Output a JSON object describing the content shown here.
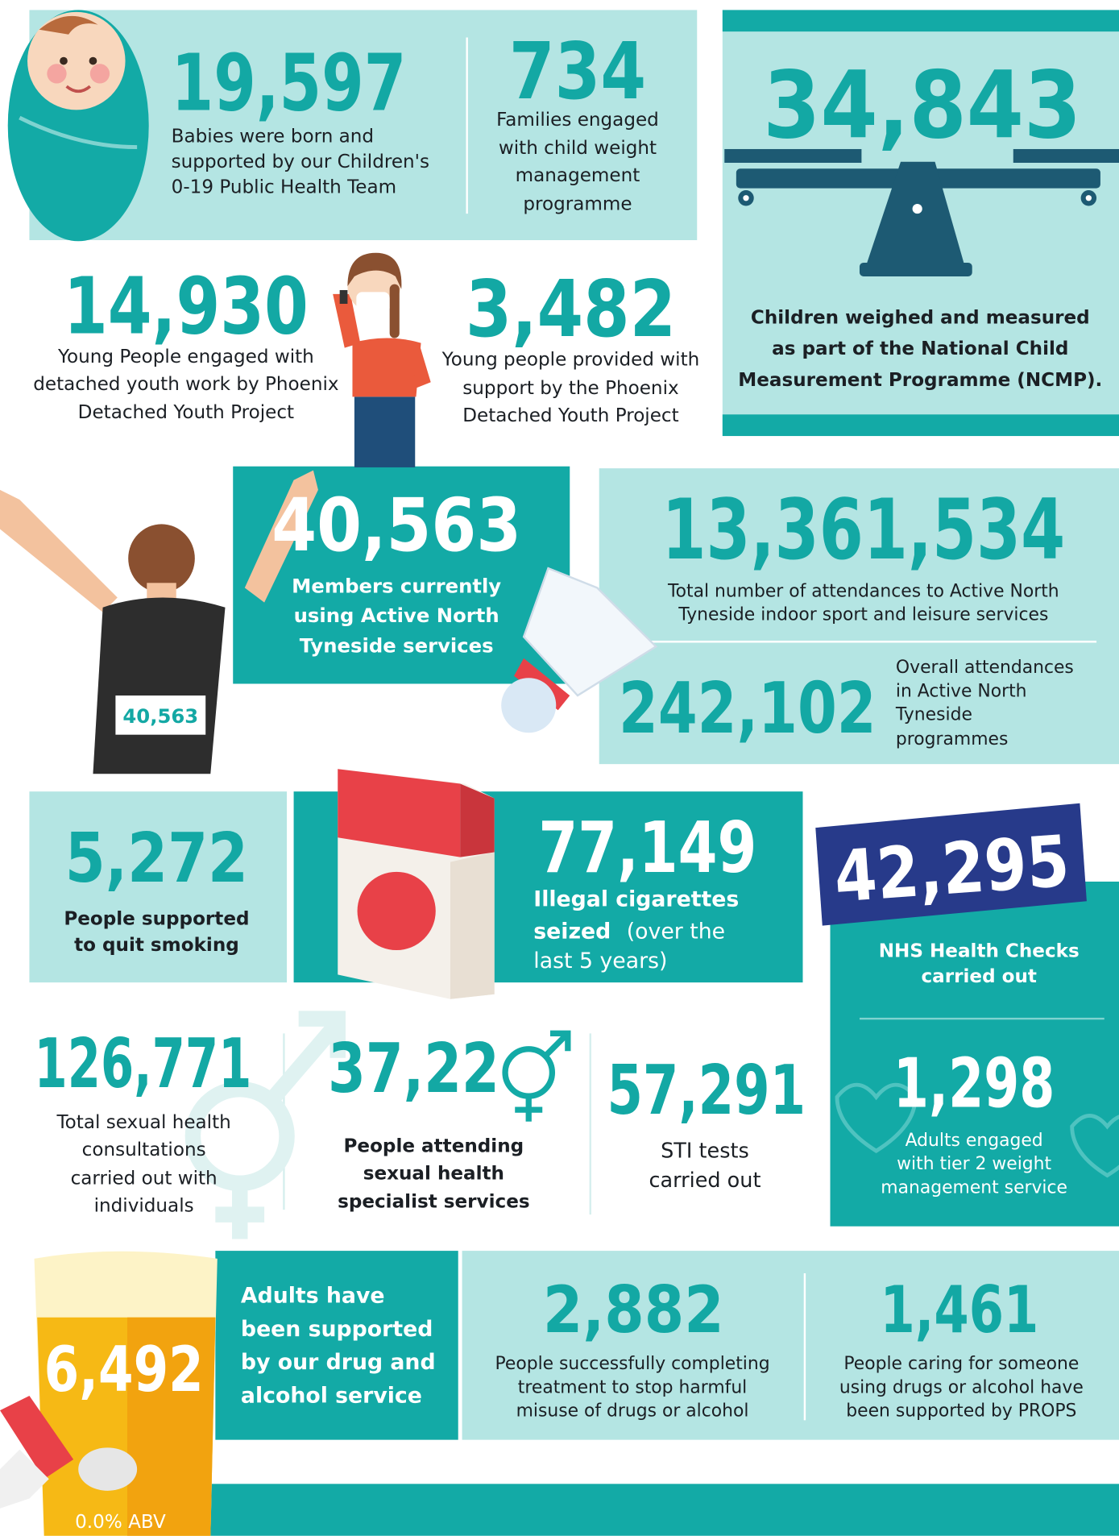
{
  "stats": [
    {
      "value": "19,597",
      "text": [
        "Babies were born and",
        "supported by our Children's",
        "0-19 Public Health Team"
      ]
    },
    {
      "value": "734",
      "text": [
        "Families engaged",
        "with child weight",
        "management",
        "programme"
      ]
    },
    {
      "value": "34,843",
      "text": [
        "Children weighed and measured",
        "as part of the National Child",
        "Measurement Programme (NCMP)."
      ]
    },
    {
      "value": "14,930",
      "text": [
        "Young People engaged with",
        "detached youth work by Phoenix",
        "Detached Youth Project"
      ]
    },
    {
      "value": "3,482",
      "text": [
        "Young people provided with",
        "support by the Phoenix",
        "Detached Youth Project"
      ]
    },
    {
      "value": "40,563",
      "text": [
        "Members currently",
        "using Active North",
        "Tyneside services"
      ],
      "bib": "40,563"
    },
    {
      "value": "13,361,534",
      "text": [
        "Total number of attendances to Active North",
        "Tyneside indoor sport and leisure services"
      ]
    },
    {
      "value": "242,102",
      "text": [
        "Overall attendances",
        "in Active North",
        "Tyneside",
        "programmes"
      ]
    },
    {
      "value": "5,272",
      "text": [
        "People supported",
        "to quit smoking"
      ]
    },
    {
      "value": "77,149",
      "text": [
        "Illegal cigarettes",
        "seized",
        "(over the",
        "last 5 years)"
      ]
    },
    {
      "value": "42,295",
      "text": [
        "NHS Health Checks",
        "carried out"
      ]
    },
    {
      "value": "1,298",
      "text": [
        "Adults engaged",
        "with tier 2 weight",
        "management service"
      ]
    },
    {
      "value": "126,771",
      "text": [
        "Total sexual health",
        "consultations",
        "carried out with",
        "individuals"
      ]
    },
    {
      "value": "37,22",
      "text": [
        "People attending",
        "sexual health",
        "specialist services"
      ]
    },
    {
      "value": "57,291",
      "text": [
        "STI tests",
        "carried out"
      ]
    },
    {
      "value": "6,492",
      "text": [
        "Adults have",
        "been supported",
        "by our drug and",
        "alcohol service"
      ],
      "glass_label": "0.0% ABV"
    },
    {
      "value": "2,882",
      "text": [
        "People successfully completing",
        "treatment to stop harmful",
        "misuse of drugs or alcohol"
      ]
    },
    {
      "value": "1,461",
      "text": [
        "People caring for someone",
        "using drugs or alcohol have",
        "been supported by PROPS"
      ]
    }
  ]
}
